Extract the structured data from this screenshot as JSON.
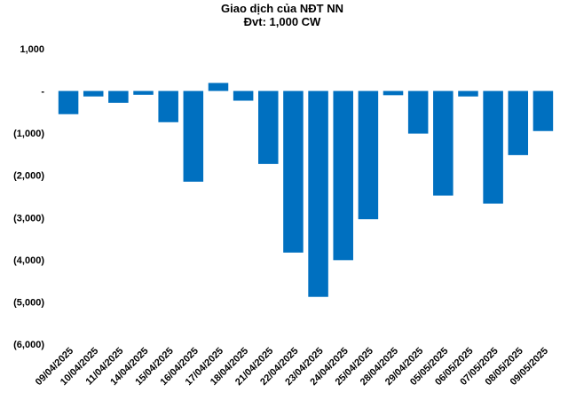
{
  "chart_data": {
    "type": "bar",
    "title": "Giao dịch của NĐT NN",
    "subtitle": "Đvt: 1,000 CW",
    "xlabel": "",
    "ylabel": "",
    "ylim": [
      -6000,
      1000
    ],
    "yticks": [
      1000,
      0,
      -1000,
      -2000,
      -3000,
      -4000,
      -5000,
      -6000
    ],
    "ytick_labels": [
      "1,000",
      "-",
      "(1,000)",
      "(2,000)",
      "(3,000)",
      "(4,000)",
      "(5,000)",
      "(6,000)"
    ],
    "grid": false,
    "legend": "none",
    "bar_color": "#0070C0",
    "categories": [
      "09/04/2025",
      "10/04/2025",
      "11/04/2025",
      "14/04/2025",
      "15/04/2025",
      "16/04/2025",
      "17/04/2025",
      "18/04/2025",
      "21/04/2025",
      "22/04/2025",
      "23/04/2025",
      "24/04/2025",
      "25/04/2025",
      "28/04/2025",
      "29/04/2025",
      "05/05/2025",
      "06/05/2025",
      "07/05/2025",
      "08/05/2025",
      "09/05/2025"
    ],
    "values": [
      -550,
      -130,
      -280,
      -90,
      -740,
      -2150,
      190,
      -230,
      -1730,
      -3830,
      -4880,
      -4010,
      -3040,
      -100,
      -1010,
      -2480,
      -130,
      -2670,
      -1520,
      -950
    ]
  }
}
